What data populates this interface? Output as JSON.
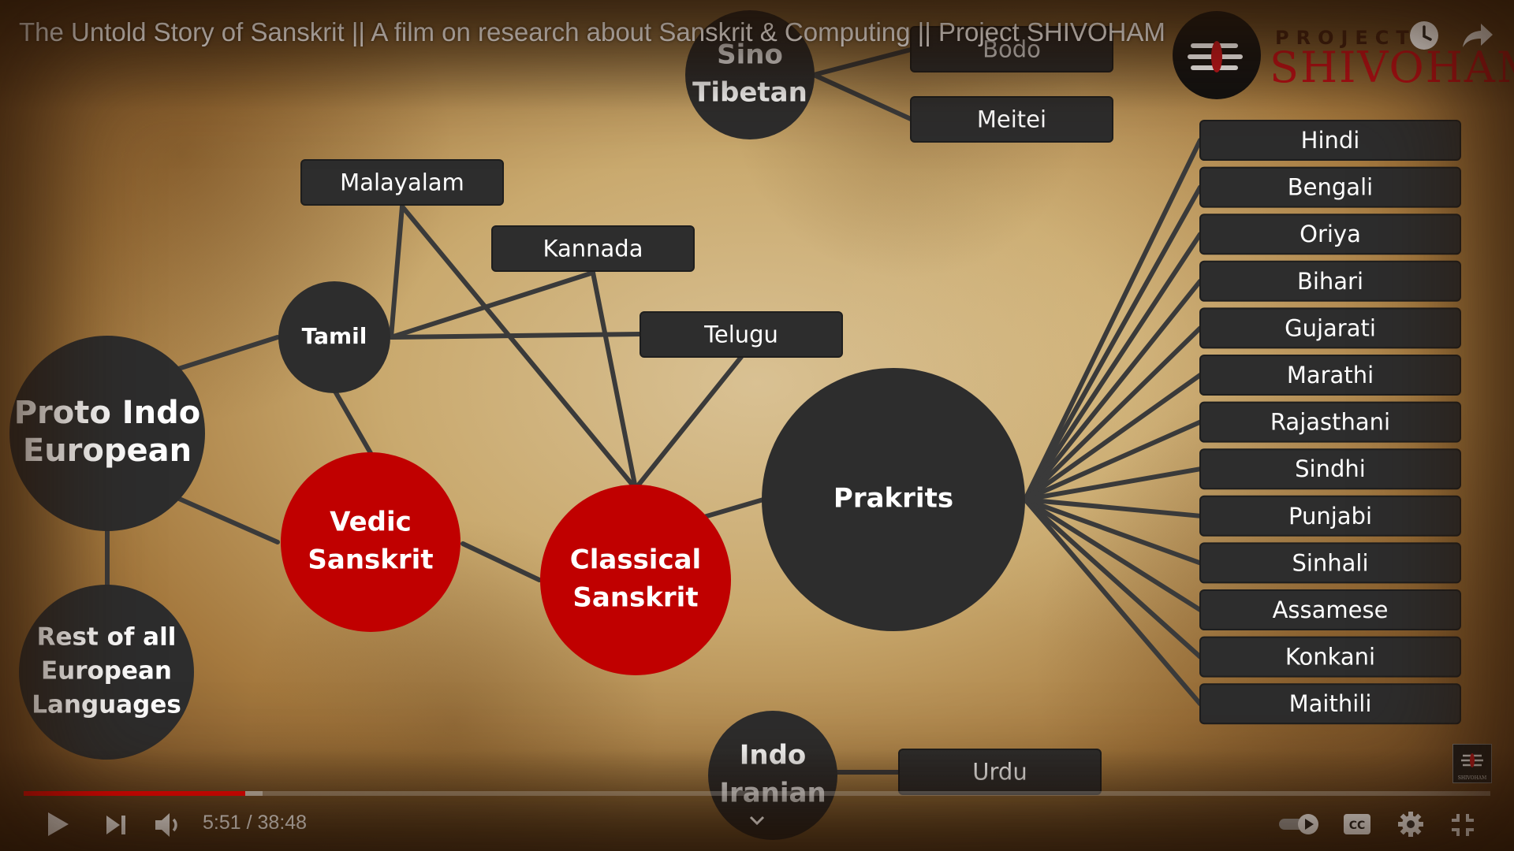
{
  "player": {
    "title": "The Untold Story of Sanskrit || A film on research about Sanskrit & Computing || Project SHIVOHAM",
    "time_current": "5:51",
    "time_separator": " / ",
    "time_total": "38:48",
    "progress_played_fraction": 0.151,
    "progress_buffered_fraction": 0.163,
    "accent_color": "#ff0000",
    "icons": {
      "watch_later": "clock-icon",
      "share": "share-arrow-icon",
      "play": "play-icon",
      "next": "next-icon",
      "volume": "volume-icon",
      "chevron": "chevron-down-icon",
      "autoplay": "autoplay-toggle-icon",
      "captions": "cc-icon",
      "settings": "gear-icon",
      "fullscreen_exit": "exit-fullscreen-icon"
    }
  },
  "logo": {
    "project_text": "PROJECT",
    "name_text": "SHIVOHAM",
    "watermark_text": "SHIVOHAM",
    "brand_color": "#b00d14"
  },
  "diagram": {
    "nodes": {
      "pie": "Proto Indo European",
      "rest_eu": "Rest of all European Languages",
      "tamil": "Tamil",
      "vedic": "Vedic Sanskrit",
      "classical": "Classical Sanskrit",
      "prakrits": "Prakrits",
      "sino": "Sino Tibetan",
      "indo_iranian": "Indo Iranian"
    },
    "boxes": {
      "malayalam": "Malayalam",
      "kannada": "Kannada",
      "telugu": "Telugu",
      "bodo": "Bodo",
      "meitei": "Meitei",
      "urdu": "Urdu"
    },
    "prakrit_languages": [
      "Hindi",
      "Bengali",
      "Oriya",
      "Bihari",
      "Gujarati",
      "Marathi",
      "Rajasthani",
      "Sindhi",
      "Punjabi",
      "Sinhali",
      "Assamese",
      "Konkani",
      "Maithili"
    ],
    "colors": {
      "dark_node": "#2d2d2d",
      "sanskrit_node": "#c00000"
    }
  }
}
